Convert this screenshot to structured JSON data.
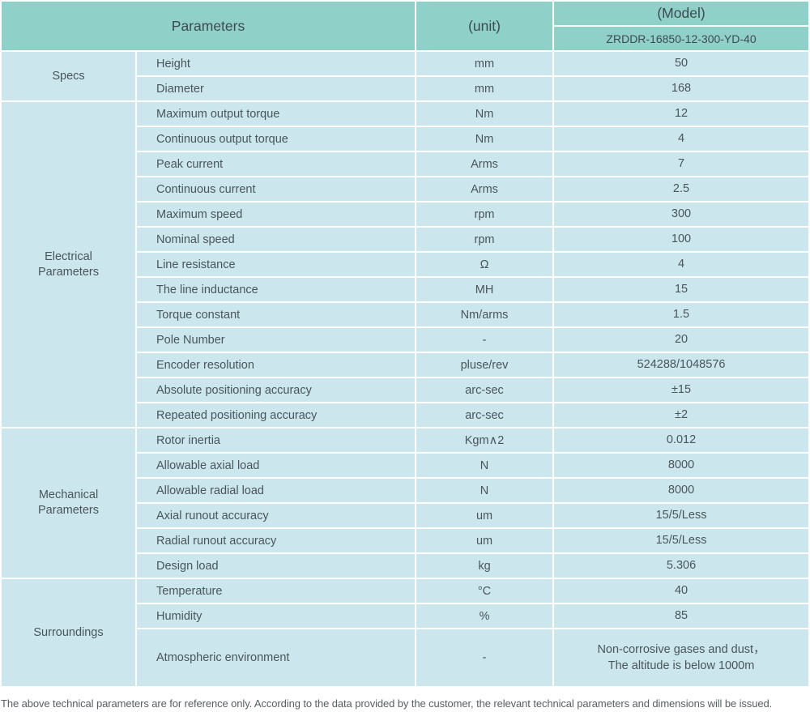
{
  "colors": {
    "header_bg": "#8fd1c9",
    "row_bg": "#cbe7ed",
    "text": "#4a555b",
    "header_text": "#3d4b50",
    "footer_text": "#565f63"
  },
  "table": {
    "header": {
      "parameters_label": "Parameters",
      "unit_label": "(unit)",
      "model_label": "(Model)",
      "model_number": "ZRDDR-16850-12-300-YD-40"
    },
    "sections": [
      {
        "name": "Specs",
        "rows": [
          {
            "parameter": "Height",
            "unit": "mm",
            "value": "50"
          },
          {
            "parameter": "Diameter",
            "unit": "mm",
            "value": "168"
          }
        ]
      },
      {
        "name": "Electrical\nParameters",
        "rows": [
          {
            "parameter": "Maximum output torque",
            "unit": "Nm",
            "value": "12"
          },
          {
            "parameter": "Continuous output torque",
            "unit": "Nm",
            "value": "4"
          },
          {
            "parameter": "Peak current",
            "unit": "Arms",
            "value": "7"
          },
          {
            "parameter": "Continuous current",
            "unit": "Arms",
            "value": "2.5"
          },
          {
            "parameter": "Maximum speed",
            "unit": "rpm",
            "value": "300"
          },
          {
            "parameter": "Nominal speed",
            "unit": "rpm",
            "value": "100"
          },
          {
            "parameter": "Line resistance",
            "unit": "Ω",
            "value": "4"
          },
          {
            "parameter": "The line inductance",
            "unit": "MH",
            "value": "15"
          },
          {
            "parameter": "Torque constant",
            "unit": "Nm/arms",
            "value": "1.5"
          },
          {
            "parameter": "Pole Number",
            "unit": "-",
            "value": "20"
          },
          {
            "parameter": "Encoder resolution",
            "unit": "pluse/rev",
            "value": "524288/1048576"
          },
          {
            "parameter": "Absolute positioning accuracy",
            "unit": "arc-sec",
            "value": "±15"
          },
          {
            "parameter": "Repeated positioning accuracy",
            "unit": "arc-sec",
            "value": "±2"
          }
        ]
      },
      {
        "name": "Mechanical\nParameters",
        "rows": [
          {
            "parameter": "Rotor inertia",
            "unit": "Kgm∧2",
            "value": "0.012"
          },
          {
            "parameter": "Allowable axial load",
            "unit": "N",
            "value": "8000"
          },
          {
            "parameter": "Allowable radial load",
            "unit": "N",
            "value": "8000"
          },
          {
            "parameter": "Axial runout accuracy",
            "unit": "um",
            "value": "15/5/Less"
          },
          {
            "parameter": "Radial runout accuracy",
            "unit": "um",
            "value": "15/5/Less"
          },
          {
            "parameter": "Design load",
            "unit": "kg",
            "value": "5.306"
          }
        ]
      },
      {
        "name": "Surroundings",
        "rows": [
          {
            "parameter": "Temperature",
            "unit": "°C",
            "value": "40"
          },
          {
            "parameter": "Humidity",
            "unit": "%",
            "value": "85"
          },
          {
            "parameter": "Atmospheric environment",
            "unit": "-",
            "value": "Non-corrosive gases and dust，\nThe altitude is below 1000m",
            "tall": true
          }
        ]
      }
    ],
    "footer_note": "The above technical parameters are for reference only. According to the data provided by the customer, the relevant technical parameters and dimensions will be issued."
  }
}
